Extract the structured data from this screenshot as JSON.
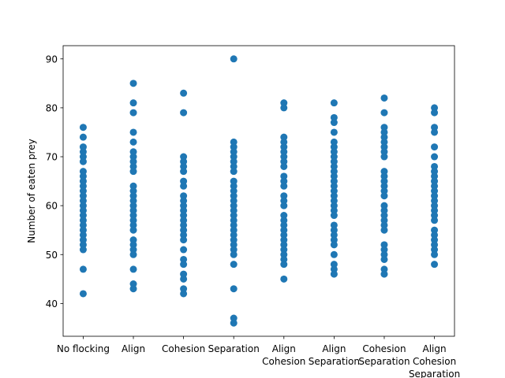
{
  "chart_data": {
    "type": "scatter",
    "title": "",
    "xlabel": "",
    "ylabel": "Number of eaten prey",
    "categories": [
      [
        "No flocking"
      ],
      [
        "Align"
      ],
      [
        "Cohesion"
      ],
      [
        "Separation"
      ],
      [
        "Align",
        "Cohesion"
      ],
      [
        "Align",
        "Separation"
      ],
      [
        "Cohesion",
        "Separation"
      ],
      [
        "Align",
        "Cohesion",
        "Separation"
      ]
    ],
    "y_ticks": [
      40,
      50,
      60,
      70,
      80,
      90
    ],
    "ylim": [
      33.3,
      92.7
    ],
    "xlim": [
      -0.4,
      7.4
    ],
    "grid": false,
    "marker_color": "#1f77b4",
    "series": [
      {
        "category_index": 0,
        "values": [
          76,
          74,
          72,
          71,
          70,
          69,
          67,
          66,
          65,
          64,
          63,
          62,
          61,
          60,
          59,
          58,
          57,
          56,
          55,
          54,
          53,
          52,
          51,
          47,
          42
        ]
      },
      {
        "category_index": 1,
        "values": [
          85,
          81,
          79,
          75,
          73,
          71,
          70,
          69,
          68,
          67,
          64,
          63,
          62,
          61,
          60,
          59,
          58,
          57,
          56,
          55,
          53,
          52,
          51,
          50,
          47,
          44,
          43
        ]
      },
      {
        "category_index": 2,
        "values": [
          83,
          79,
          70,
          69,
          68,
          67,
          65,
          64,
          62,
          61,
          60,
          59,
          58,
          57,
          56,
          55,
          54,
          53,
          51,
          49,
          48,
          46,
          45,
          43,
          42
        ]
      },
      {
        "category_index": 3,
        "values": [
          90,
          73,
          72,
          71,
          70,
          69,
          68,
          67,
          65,
          64,
          63,
          62,
          61,
          60,
          59,
          58,
          57,
          56,
          55,
          54,
          53,
          52,
          51,
          50,
          48,
          43,
          37,
          36
        ]
      },
      {
        "category_index": 4,
        "values": [
          81,
          80,
          74,
          73,
          72,
          71,
          70,
          69,
          68,
          66,
          65,
          64,
          62,
          61,
          60,
          58,
          57,
          56,
          55,
          54,
          53,
          52,
          51,
          50,
          49,
          48,
          45
        ]
      },
      {
        "category_index": 5,
        "values": [
          81,
          78,
          77,
          75,
          73,
          72,
          71,
          70,
          69,
          68,
          67,
          66,
          65,
          64,
          63,
          62,
          61,
          60,
          59,
          58,
          56,
          55,
          54,
          53,
          52,
          50,
          48,
          47,
          46
        ]
      },
      {
        "category_index": 6,
        "values": [
          82,
          79,
          76,
          75,
          74,
          73,
          72,
          71,
          70,
          67,
          66,
          65,
          64,
          63,
          62,
          60,
          59,
          58,
          57,
          56,
          55,
          52,
          51,
          50,
          49,
          47,
          46
        ]
      },
      {
        "category_index": 7,
        "values": [
          80,
          79,
          76,
          75,
          72,
          70,
          68,
          67,
          66,
          65,
          64,
          63,
          62,
          61,
          60,
          59,
          58,
          57,
          55,
          54,
          53,
          52,
          51,
          50,
          48
        ]
      }
    ]
  }
}
